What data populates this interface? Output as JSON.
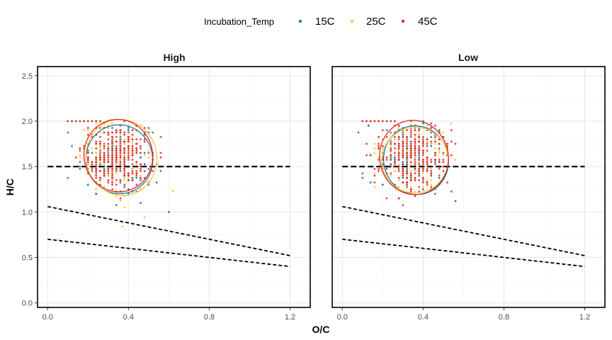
{
  "chart_data": {
    "type": "scatter",
    "xlabel": "O/C",
    "ylabel": "H/C",
    "xlim": [
      -0.05,
      1.3
    ],
    "ylim": [
      -0.05,
      2.6
    ],
    "x_ticks": [
      "0.0",
      "0.4",
      "0.8",
      "1.2"
    ],
    "y_ticks": [
      "0.0",
      "0.5",
      "1.0",
      "1.5",
      "2.0",
      "2.5"
    ],
    "legend": {
      "title": "Incubation_Temp",
      "position": "top"
    },
    "grid": true,
    "series": [
      {
        "name": "15C",
        "color": "#1f7a99"
      },
      {
        "name": "25C",
        "color": "#f5c842"
      },
      {
        "name": "45C",
        "color": "#e0281e"
      }
    ],
    "reference_lines": [
      {
        "x": [
          0.0,
          1.2
        ],
        "y": [
          1.5,
          1.5
        ]
      },
      {
        "x": [
          0.0,
          1.2
        ],
        "y": [
          1.06,
          0.52
        ]
      },
      {
        "x": [
          0.0,
          1.2
        ],
        "y": [
          0.7,
          0.4
        ]
      }
    ],
    "facets": [
      {
        "label": "High",
        "ellipses": [
          {
            "series": "15C",
            "cx": 0.355,
            "cy": 1.58,
            "rx": 0.165,
            "ry": 0.38,
            "rot": -0.25
          },
          {
            "series": "25C",
            "cx": 0.365,
            "cy": 1.6,
            "rx": 0.175,
            "ry": 0.42,
            "rot": -0.25
          },
          {
            "series": "45C",
            "cx": 0.35,
            "cy": 1.62,
            "rx": 0.17,
            "ry": 0.4,
            "rot": -0.2
          }
        ],
        "outliers": [
          {
            "series": "25C",
            "x": 0.62,
            "y": 1.23
          },
          {
            "series": "25C",
            "x": 0.48,
            "y": 0.94
          },
          {
            "series": "45C",
            "x": 0.6,
            "y": 1.0
          },
          {
            "series": "15C",
            "x": 0.2,
            "y": 1.3
          },
          {
            "series": "25C",
            "x": 0.37,
            "y": 0.84
          }
        ]
      },
      {
        "label": "Low",
        "ellipses": [
          {
            "series": "15C",
            "cx": 0.365,
            "cy": 1.57,
            "rx": 0.16,
            "ry": 0.38,
            "rot": -0.25
          },
          {
            "series": "25C",
            "cx": 0.36,
            "cy": 1.57,
            "rx": 0.165,
            "ry": 0.36,
            "rot": -0.25
          },
          {
            "series": "45C",
            "cx": 0.355,
            "cy": 1.6,
            "rx": 0.17,
            "ry": 0.41,
            "rot": -0.2
          }
        ],
        "outliers": [
          {
            "series": "15C",
            "x": 0.56,
            "y": 1.12
          },
          {
            "series": "15C",
            "x": 0.2,
            "y": 1.3
          },
          {
            "series": "15C",
            "x": 0.13,
            "y": 1.95
          }
        ]
      }
    ]
  }
}
